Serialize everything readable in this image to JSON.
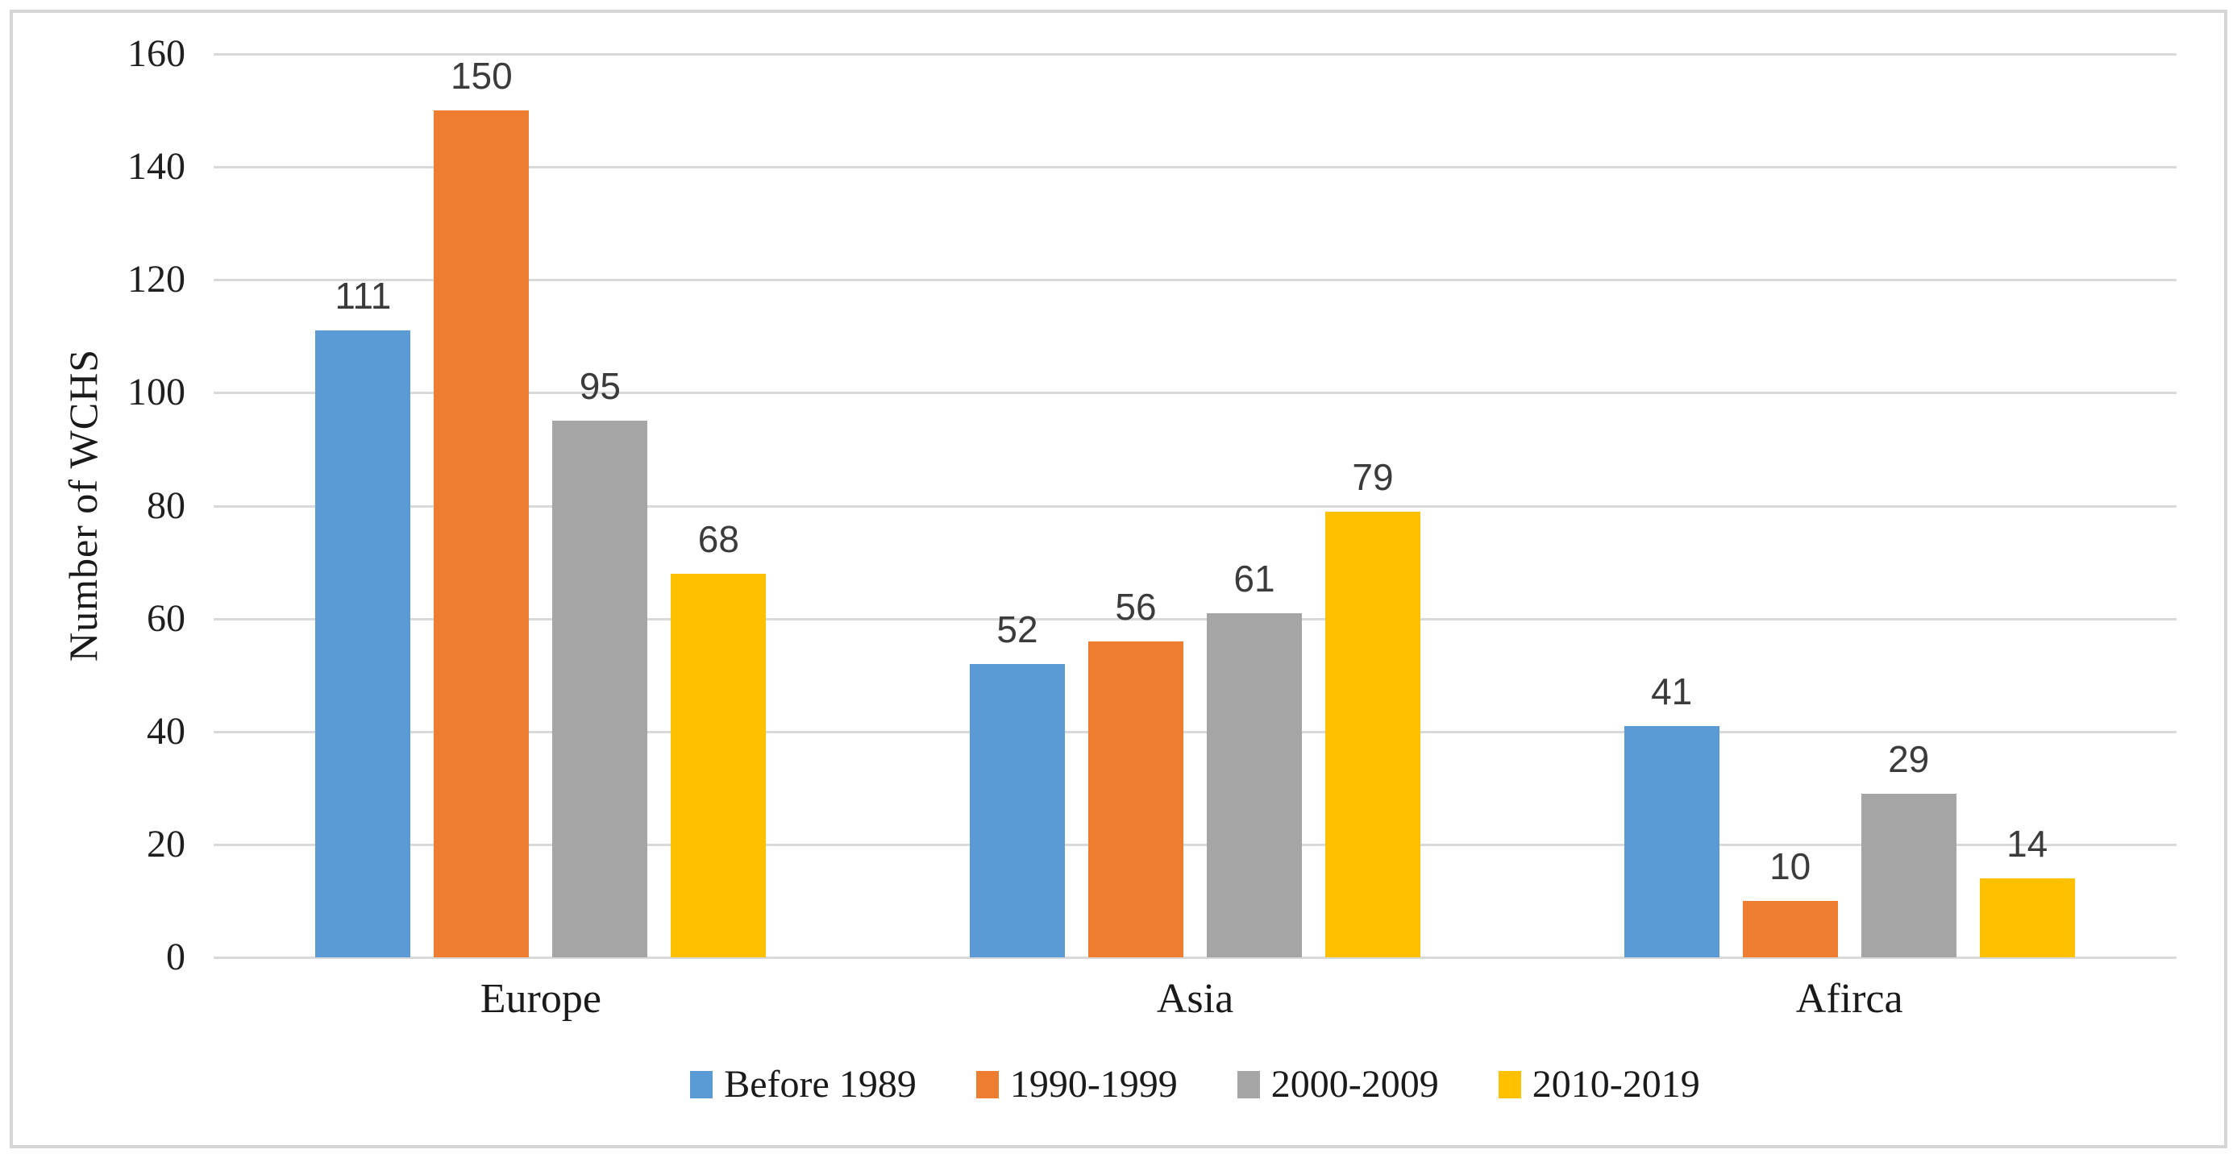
{
  "chart_data": {
    "type": "bar",
    "title": "",
    "xlabel": "",
    "ylabel": "Number of WCHS",
    "ylim": [
      0,
      160
    ],
    "yticks": [
      0,
      20,
      40,
      60,
      80,
      100,
      120,
      140,
      160
    ],
    "grid": true,
    "legend_position": "bottom",
    "categories": [
      "Europe",
      "Asia",
      "Afirca"
    ],
    "series": [
      {
        "name": "Before 1989",
        "color": "#5B9BD5",
        "values": [
          111,
          52,
          41
        ]
      },
      {
        "name": "1990-1999",
        "color": "#ED7D31",
        "values": [
          150,
          56,
          10
        ]
      },
      {
        "name": "2000-2009",
        "color": "#A5A5A5",
        "values": [
          95,
          61,
          29
        ]
      },
      {
        "name": "2010-2019",
        "color": "#FFC000",
        "values": [
          68,
          79,
          14
        ]
      }
    ],
    "colors": {
      "gridline": "#d9d9d9",
      "frame_border": "#d6d6d6",
      "tick_text": "#1f1f1f",
      "value_text": "#3b3b3b"
    }
  }
}
